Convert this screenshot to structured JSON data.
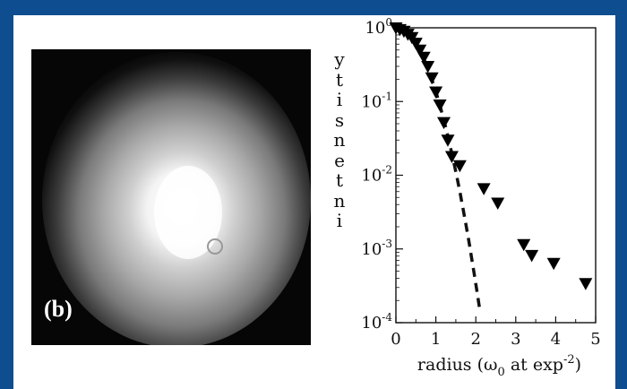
{
  "panel_label": "(b)",
  "chart_data": {
    "type": "scatter",
    "xlabel": "radius (ω0 at exp-2)",
    "xlabel_parts": {
      "pre": "radius (ω",
      "sub": "0",
      "mid": " at exp",
      "sup": "-2",
      "post": ")"
    },
    "ylabel": "intensity",
    "ylabel_letters": [
      "y",
      "t",
      "i",
      "s",
      "n",
      "e",
      "t",
      "n",
      "i"
    ],
    "yscale": "log",
    "xlim": [
      0,
      5
    ],
    "ylim": [
      0.0001,
      1
    ],
    "x_ticks": [
      "0",
      "1",
      "2",
      "3",
      "4",
      "5"
    ],
    "y_ticks": [
      {
        "base": "10",
        "exp": "0",
        "value": 1
      },
      {
        "base": "10",
        "exp": "-1",
        "value": 0.1
      },
      {
        "base": "10",
        "exp": "-2",
        "value": 0.01
      },
      {
        "base": "10",
        "exp": "-3",
        "value": 0.001
      },
      {
        "base": "10",
        "exp": "-4",
        "value": 0.0001
      }
    ],
    "series": [
      {
        "marker": "triangle-down",
        "color": "#000000",
        "points": [
          [
            0.0,
            1.0
          ],
          [
            0.1,
            0.95
          ],
          [
            0.2,
            0.9
          ],
          [
            0.3,
            0.82
          ],
          [
            0.4,
            0.74
          ],
          [
            0.5,
            0.62
          ],
          [
            0.6,
            0.5
          ],
          [
            0.7,
            0.4
          ],
          [
            0.8,
            0.3
          ],
          [
            0.9,
            0.21
          ],
          [
            1.0,
            0.135
          ],
          [
            1.1,
            0.09
          ],
          [
            1.2,
            0.052
          ],
          [
            1.3,
            0.03
          ],
          [
            1.4,
            0.018
          ],
          [
            1.6,
            0.0135
          ],
          [
            2.2,
            0.0066
          ],
          [
            2.55,
            0.0042
          ],
          [
            3.2,
            0.00115
          ],
          [
            3.4,
            0.00082
          ],
          [
            3.95,
            0.00064
          ],
          [
            4.75,
            0.00034
          ]
        ]
      },
      {
        "style": "dashed",
        "color": "#000000",
        "function": "exp(-2*x^2)",
        "x_range": [
          0,
          2.1
        ]
      }
    ]
  }
}
